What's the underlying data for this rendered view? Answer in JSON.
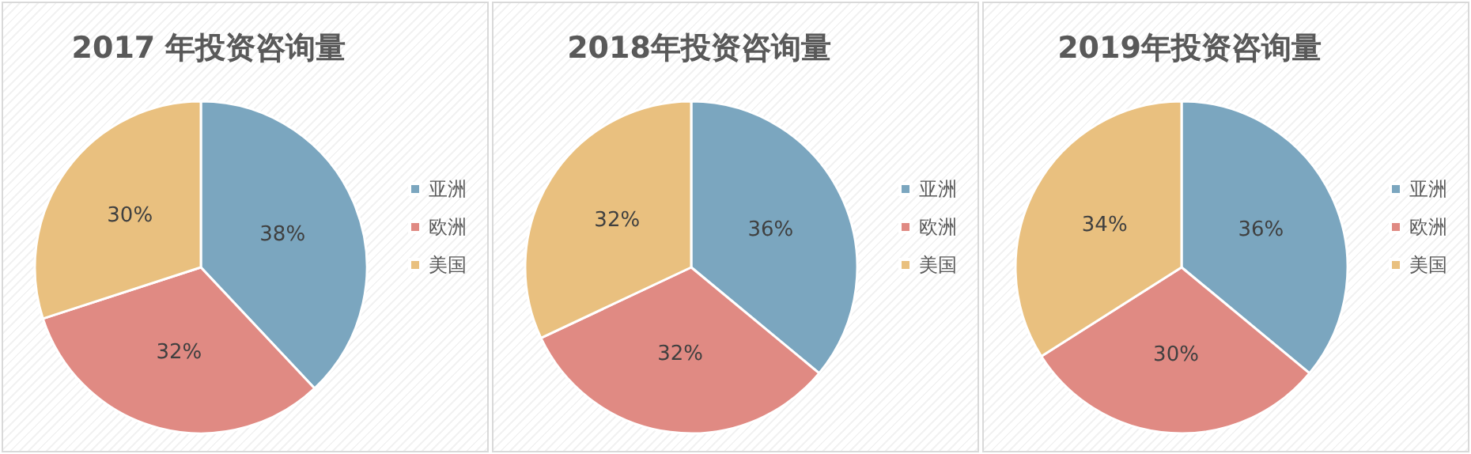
{
  "chart_data": [
    {
      "type": "pie",
      "title": "2017 年投资咨询量",
      "categories": [
        "亚洲",
        "欧洲",
        "美国"
      ],
      "values": [
        38,
        32,
        30
      ],
      "value_labels": [
        "38%",
        "32%",
        "30%"
      ],
      "colors": [
        "#7ba6bf",
        "#e08a83",
        "#e9c07f"
      ],
      "legend": "right"
    },
    {
      "type": "pie",
      "title": "2018年投资咨询量",
      "categories": [
        "亚洲",
        "欧洲",
        "美国"
      ],
      "values": [
        36,
        32,
        32
      ],
      "value_labels": [
        "36%",
        "32%",
        "32%"
      ],
      "colors": [
        "#7ba6bf",
        "#e08a83",
        "#e9c07f"
      ],
      "legend": "right"
    },
    {
      "type": "pie",
      "title": "2019年投资咨询量",
      "categories": [
        "亚洲",
        "欧洲",
        "美国"
      ],
      "values": [
        36,
        30,
        34
      ],
      "value_labels": [
        "36%",
        "30%",
        "34%"
      ],
      "colors": [
        "#7ba6bf",
        "#e08a83",
        "#e9c07f"
      ],
      "legend": "right"
    }
  ]
}
